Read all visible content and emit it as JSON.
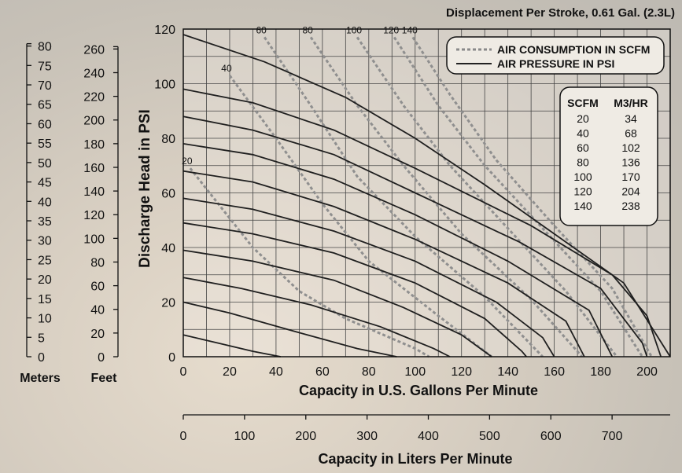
{
  "chart_data": {
    "type": "line",
    "title": "Displacement Per Stroke, 0.61 Gal. (2.3L)",
    "xlabel": "Capacity in U.S. Gallons Per Minute",
    "ylabel": "Discharge Head in PSI",
    "x2label": "Capacity in Liters Per Minute",
    "xlim": [
      0,
      210
    ],
    "ylim": [
      0,
      120
    ],
    "x_ticks": [
      0,
      20,
      40,
      60,
      80,
      100,
      120,
      140,
      160,
      180,
      200
    ],
    "y_ticks": [
      0,
      20,
      40,
      60,
      80,
      100,
      120
    ],
    "x2_ticks": [
      0,
      100,
      200,
      300,
      400,
      500,
      600,
      700
    ],
    "x2_per_x": 3.785,
    "meters_label": "Meters",
    "meters_ticks": [
      0,
      5,
      10,
      15,
      20,
      25,
      30,
      35,
      40,
      45,
      50,
      55,
      60,
      65,
      70,
      75,
      80
    ],
    "meters_per_psi": 0.7031,
    "feet_label": "Feet",
    "feet_ticks": [
      0,
      20,
      40,
      60,
      80,
      100,
      120,
      140,
      160,
      180,
      200,
      220,
      240,
      260
    ],
    "feet_per_psi": 2.307,
    "grid": true,
    "legend": {
      "position": "top-right",
      "entries": [
        {
          "label": "AIR CONSUMPTION IN SCFM",
          "style": "dashed",
          "color": "#8a8a8a"
        },
        {
          "label": "AIR PRESSURE IN PSI",
          "style": "solid",
          "color": "#222222"
        }
      ]
    },
    "conversion_table": {
      "headers": [
        "SCFM",
        "M3/HR"
      ],
      "rows": [
        [
          "20",
          "34"
        ],
        [
          "40",
          "68"
        ],
        [
          "60",
          "102"
        ],
        [
          "80",
          "136"
        ],
        [
          "100",
          "170"
        ],
        [
          "120",
          "204"
        ],
        [
          "140",
          "238"
        ]
      ]
    },
    "pressure_series": [
      {
        "points": [
          [
            0,
            8
          ],
          [
            15,
            5
          ],
          [
            30,
            2
          ],
          [
            42,
            0
          ]
        ]
      },
      {
        "points": [
          [
            0,
            20
          ],
          [
            20,
            16
          ],
          [
            45,
            10
          ],
          [
            75,
            3
          ],
          [
            92,
            0
          ]
        ]
      },
      {
        "points": [
          [
            0,
            29
          ],
          [
            25,
            25
          ],
          [
            55,
            19
          ],
          [
            85,
            11
          ],
          [
            108,
            3
          ],
          [
            115,
            0
          ]
        ]
      },
      {
        "points": [
          [
            0,
            39
          ],
          [
            30,
            35
          ],
          [
            65,
            28
          ],
          [
            95,
            18
          ],
          [
            120,
            8
          ],
          [
            133,
            0
          ]
        ]
      },
      {
        "points": [
          [
            0,
            49
          ],
          [
            30,
            45
          ],
          [
            65,
            38
          ],
          [
            100,
            27
          ],
          [
            130,
            14
          ],
          [
            146,
            2
          ],
          [
            148,
            0
          ]
        ]
      },
      {
        "points": [
          [
            0,
            58
          ],
          [
            30,
            54
          ],
          [
            65,
            46
          ],
          [
            100,
            35
          ],
          [
            135,
            20
          ],
          [
            155,
            7
          ],
          [
            160,
            0
          ]
        ]
      },
      {
        "points": [
          [
            0,
            68
          ],
          [
            30,
            64
          ],
          [
            65,
            55
          ],
          [
            100,
            43
          ],
          [
            140,
            27
          ],
          [
            165,
            13
          ],
          [
            173,
            0
          ]
        ]
      },
      {
        "points": [
          [
            0,
            78
          ],
          [
            30,
            74
          ],
          [
            65,
            65
          ],
          [
            100,
            52
          ],
          [
            140,
            35
          ],
          [
            175,
            17
          ],
          [
            185,
            0
          ]
        ]
      },
      {
        "points": [
          [
            0,
            88
          ],
          [
            30,
            83
          ],
          [
            65,
            74
          ],
          [
            100,
            60
          ],
          [
            145,
            42
          ],
          [
            180,
            25
          ],
          [
            198,
            5
          ],
          [
            200,
            0
          ]
        ]
      },
      {
        "points": [
          [
            0,
            98
          ],
          [
            30,
            93
          ],
          [
            65,
            83
          ],
          [
            100,
            69
          ],
          [
            150,
            48
          ],
          [
            185,
            30
          ],
          [
            200,
            15
          ],
          [
            206,
            0
          ]
        ]
      },
      {
        "points": [
          [
            0,
            118
          ],
          [
            35,
            108
          ],
          [
            70,
            95
          ],
          [
            100,
            80
          ],
          [
            130,
            63
          ],
          [
            160,
            45
          ],
          [
            190,
            27
          ],
          [
            210,
            0
          ]
        ]
      }
    ],
    "air_series": [
      {
        "label": "20",
        "points": [
          [
            3,
            69
          ],
          [
            30,
            40
          ],
          [
            50,
            24
          ],
          [
            70,
            14
          ],
          [
            100,
            3
          ],
          [
            106,
            0
          ]
        ]
      },
      {
        "label": "40",
        "points": [
          [
            20,
            103
          ],
          [
            40,
            80
          ],
          [
            60,
            56
          ],
          [
            80,
            35
          ],
          [
            110,
            15
          ],
          [
            133,
            0
          ]
        ]
      },
      {
        "label": "60",
        "points": [
          [
            35,
            117
          ],
          [
            55,
            92
          ],
          [
            75,
            66
          ],
          [
            100,
            44
          ],
          [
            130,
            22
          ],
          [
            155,
            0
          ]
        ]
      },
      {
        "label": "80",
        "points": [
          [
            55,
            117
          ],
          [
            75,
            92
          ],
          [
            95,
            70
          ],
          [
            120,
            45
          ],
          [
            150,
            21
          ],
          [
            172,
            0
          ]
        ]
      },
      {
        "label": "100",
        "points": [
          [
            75,
            117
          ],
          [
            95,
            92
          ],
          [
            115,
            70
          ],
          [
            140,
            47
          ],
          [
            165,
            24
          ],
          [
            187,
            0
          ]
        ]
      },
      {
        "label": "120",
        "points": [
          [
            91,
            117
          ],
          [
            110,
            92
          ],
          [
            130,
            70
          ],
          [
            155,
            47
          ],
          [
            180,
            24
          ],
          [
            198,
            0
          ]
        ]
      },
      {
        "label": "140",
        "points": [
          [
            99,
            117
          ],
          [
            115,
            96
          ],
          [
            135,
            72
          ],
          [
            160,
            48
          ],
          [
            185,
            25
          ],
          [
            202,
            0
          ]
        ]
      }
    ]
  }
}
